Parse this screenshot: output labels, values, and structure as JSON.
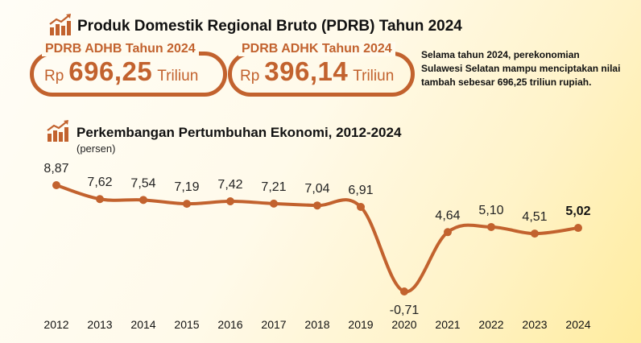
{
  "header": {
    "title": "Produk Domestik Regional Bruto (PDRB) Tahun 2024"
  },
  "adhb": {
    "label": "PDRB ADHB Tahun 2024",
    "prefix": "Rp",
    "value": "696,25",
    "unit": "Triliun"
  },
  "adhk": {
    "label": "PDRB ADHK Tahun 2024",
    "prefix": "Rp",
    "value": "396,14",
    "unit": "Triliun"
  },
  "description": "Selama tahun 2024, perekonomian Sulawesi Selatan mampu menciptakan nilai tambah sebesar 696,25 triliun rupiah.",
  "growth_section": {
    "title": "Perkembangan Pertumbuhan Ekonomi, 2012-2024",
    "unit_note": "(persen)"
  },
  "icon": "bar-chart-growth-icon",
  "colors": {
    "accent": "#c2622e",
    "text": "#111111"
  },
  "chart_data": {
    "type": "line",
    "title": "Perkembangan Pertumbuhan Ekonomi, 2012-2024",
    "xlabel": "",
    "ylabel": "(persen)",
    "categories": [
      "2012",
      "2013",
      "2014",
      "2015",
      "2016",
      "2017",
      "2018",
      "2019",
      "2020",
      "2021",
      "2022",
      "2023",
      "2024"
    ],
    "values": [
      8.87,
      7.62,
      7.54,
      7.19,
      7.42,
      7.21,
      7.04,
      6.91,
      -0.71,
      4.64,
      5.1,
      4.51,
      5.02
    ],
    "value_labels": [
      "8,87",
      "7,62",
      "7,54",
      "7,19",
      "7,42",
      "7,21",
      "7,04",
      "6,91",
      "-0,71",
      "4,64",
      "5,10",
      "4,51",
      "5,02"
    ],
    "highlight_last": true,
    "grid": false,
    "line_color": "#c2622e"
  }
}
